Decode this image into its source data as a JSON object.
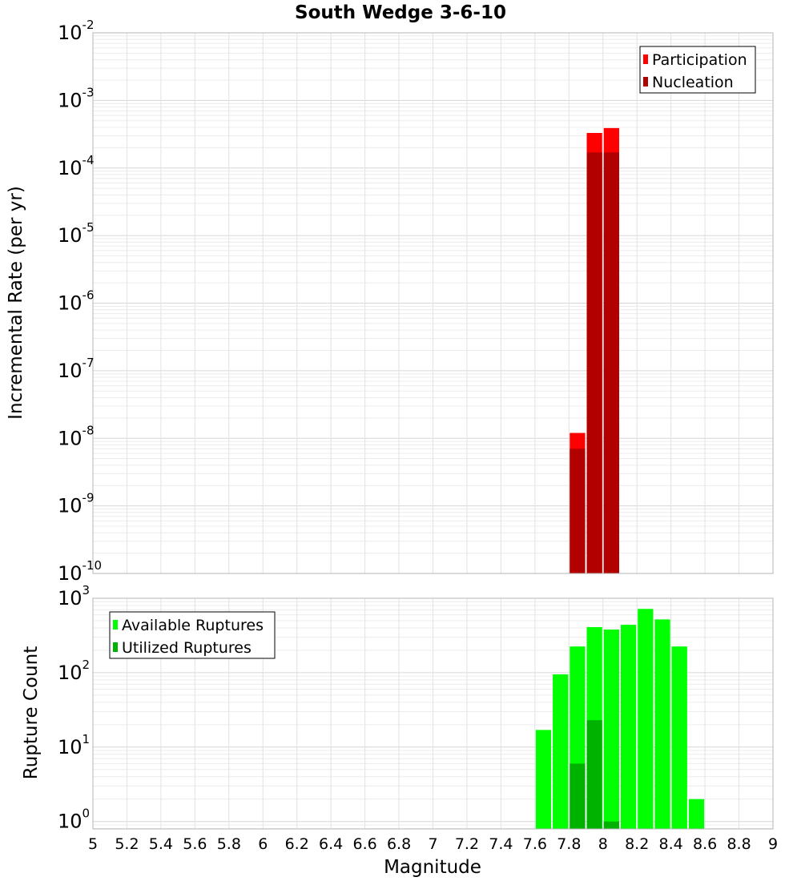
{
  "chart_data": {
    "title": "South Wedge 3-6-10",
    "xlabel": "Magnitude",
    "xlim": [
      5,
      9
    ],
    "xticks": [
      5,
      5.2,
      5.4,
      5.6,
      5.8,
      6,
      6.2,
      6.4,
      6.6,
      6.8,
      7,
      7.2,
      7.4,
      7.6,
      7.8,
      8,
      8.2,
      8.4,
      8.6,
      8.8,
      9
    ],
    "xtick_labels": [
      "5",
      "5.2",
      "5.4",
      "5.6",
      "5.8",
      "6",
      "6.2",
      "6.4",
      "6.6",
      "6.8",
      "7",
      "7.2",
      "7.4",
      "7.6",
      "7.8",
      "8",
      "8.2",
      "8.4",
      "8.6",
      "8.8",
      "9"
    ],
    "bin_width": 0.1,
    "panels": [
      {
        "type": "bar",
        "scale": "log",
        "ylabel": "Incremental Rate (per yr)",
        "ylim_exp": [
          -10,
          -2
        ],
        "ytick_exponents": [
          "-10",
          "-9",
          "-8",
          "-7",
          "-6",
          "-5",
          "-4",
          "-3",
          "-2"
        ],
        "legend": {
          "position": "top-right",
          "entries": [
            "Participation",
            "Nucleation"
          ]
        },
        "series": [
          {
            "name": "Participation",
            "color": "#ff0000",
            "x": [
              7.85,
              7.95,
              8.05
            ],
            "values": [
              1.2e-08,
              0.00033,
              0.00039
            ]
          },
          {
            "name": "Nucleation",
            "color": "#b20000",
            "x": [
              7.85,
              7.95,
              8.05
            ],
            "values": [
              7e-09,
              0.00017,
              0.00017
            ]
          }
        ]
      },
      {
        "type": "bar",
        "scale": "log",
        "ylabel": "Rupture Count",
        "ylim_exp": [
          -0.1,
          3
        ],
        "ytick_exponents": [
          "0",
          "1",
          "2",
          "3"
        ],
        "legend": {
          "position": "top-left",
          "entries": [
            "Available Ruptures",
            "Utilized Ruptures"
          ]
        },
        "series": [
          {
            "name": "Available Ruptures",
            "color": "#00ff00",
            "x": [
              7.65,
              7.75,
              7.85,
              7.95,
              8.05,
              8.15,
              8.25,
              8.35,
              8.45,
              8.55
            ],
            "values": [
              17,
              95,
              225,
              410,
              380,
              440,
              720,
              520,
              225,
              2
            ]
          },
          {
            "name": "Utilized Ruptures",
            "color": "#00b200",
            "x": [
              7.85,
              7.95,
              8.05
            ],
            "values": [
              6,
              23,
              1
            ]
          }
        ]
      }
    ]
  }
}
